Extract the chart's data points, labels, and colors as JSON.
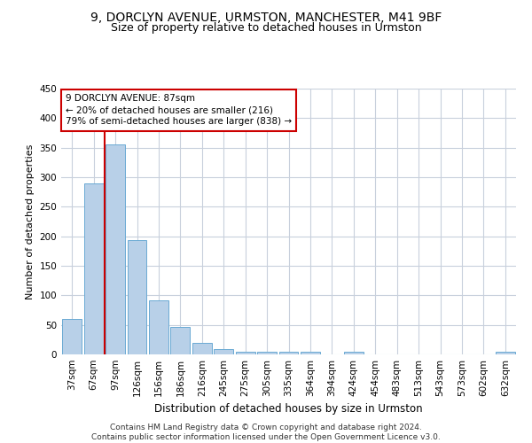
{
  "title1": "9, DORCLYN AVENUE, URMSTON, MANCHESTER, M41 9BF",
  "title2": "Size of property relative to detached houses in Urmston",
  "xlabel": "Distribution of detached houses by size in Urmston",
  "ylabel": "Number of detached properties",
  "categories": [
    "37sqm",
    "67sqm",
    "97sqm",
    "126sqm",
    "156sqm",
    "186sqm",
    "216sqm",
    "245sqm",
    "275sqm",
    "305sqm",
    "335sqm",
    "364sqm",
    "394sqm",
    "424sqm",
    "454sqm",
    "483sqm",
    "513sqm",
    "543sqm",
    "573sqm",
    "602sqm",
    "632sqm"
  ],
  "values": [
    60,
    290,
    355,
    193,
    92,
    47,
    20,
    9,
    5,
    5,
    5,
    4,
    0,
    4,
    0,
    0,
    0,
    0,
    0,
    0,
    4
  ],
  "bar_color": "#b8d0e8",
  "bar_edge_color": "#6aaad4",
  "property_line_x": 1.5,
  "highlight_line_color": "#cc0000",
  "property_line_label": "9 DORCLYN AVENUE: 87sqm",
  "annotation_line1": "← 20% of detached houses are smaller (216)",
  "annotation_line2": "79% of semi-detached houses are larger (838) →",
  "annotation_box_color": "#ffffff",
  "annotation_box_edge": "#cc0000",
  "ylim": [
    0,
    450
  ],
  "yticks": [
    0,
    50,
    100,
    150,
    200,
    250,
    300,
    350,
    400,
    450
  ],
  "background_color": "#ffffff",
  "grid_color": "#c8d0dc",
  "footer": "Contains HM Land Registry data © Crown copyright and database right 2024.\nContains public sector information licensed under the Open Government Licence v3.0.",
  "title1_fontsize": 10,
  "title2_fontsize": 9,
  "xlabel_fontsize": 8.5,
  "ylabel_fontsize": 8,
  "tick_fontsize": 7.5,
  "footer_fontsize": 6.5
}
